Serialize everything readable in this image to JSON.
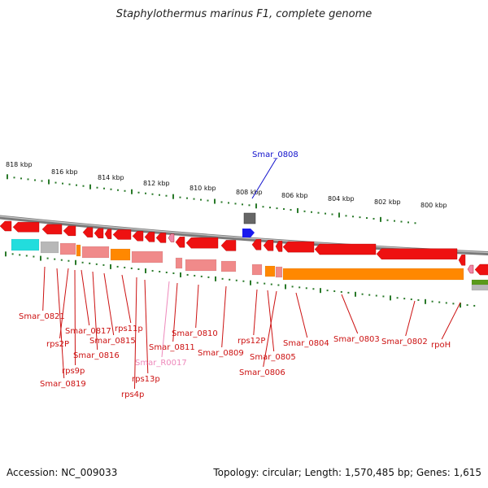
{
  "title": "Staphylothermus marinus F1, complete genome",
  "footer": {
    "accession": "Accession: NC_009033",
    "summary": "Topology: circular; Length: 1,570,485 bp; Genes: 1,615"
  },
  "colors": {
    "backbone": "#7a7a7a",
    "tick": "#2a7a2a",
    "gene_red": "#ee1111",
    "rna_pink": "#ee88aa",
    "label_red": "#cc1111",
    "label_blue": "#1111cc",
    "label_pink": "#ee88bb",
    "cog_orange": "#ff8800",
    "cog_salmon": "#f08a8a",
    "cog_gray": "#b8b8b8",
    "cog_cyan": "#22dddd"
  },
  "scale_labels": [
    "818 kbp",
    "816 kbp",
    "814 kbp",
    "812 kbp",
    "810 kbp",
    "808 kbp",
    "806 kbp",
    "804 kbp",
    "802 kbp",
    "800 kbp"
  ],
  "features": [
    {
      "name": "Smar_0808",
      "kind": "highlight"
    },
    {
      "name": "Smar_0821",
      "kind": "gene"
    },
    {
      "name": "rps2P",
      "kind": "gene"
    },
    {
      "name": "Smar_0817",
      "kind": "gene"
    },
    {
      "name": "rps11p",
      "kind": "gene"
    },
    {
      "name": "Smar_0815",
      "kind": "gene"
    },
    {
      "name": "Smar_0816",
      "kind": "gene"
    },
    {
      "name": "rps9p",
      "kind": "gene"
    },
    {
      "name": "Smar_0819",
      "kind": "gene"
    },
    {
      "name": "rps13p",
      "kind": "gene"
    },
    {
      "name": "rps4p",
      "kind": "gene"
    },
    {
      "name": "Smar_R0017",
      "kind": "rna"
    },
    {
      "name": "Smar_0811",
      "kind": "gene"
    },
    {
      "name": "Smar_0810",
      "kind": "gene"
    },
    {
      "name": "Smar_0809",
      "kind": "gene"
    },
    {
      "name": "rps12P",
      "kind": "gene"
    },
    {
      "name": "Smar_0805",
      "kind": "gene"
    },
    {
      "name": "Smar_0806",
      "kind": "gene"
    },
    {
      "name": "Smar_0804",
      "kind": "gene"
    },
    {
      "name": "Smar_0803",
      "kind": "gene"
    },
    {
      "name": "Smar_0802",
      "kind": "gene"
    },
    {
      "name": "rpoH",
      "kind": "gene"
    }
  ]
}
